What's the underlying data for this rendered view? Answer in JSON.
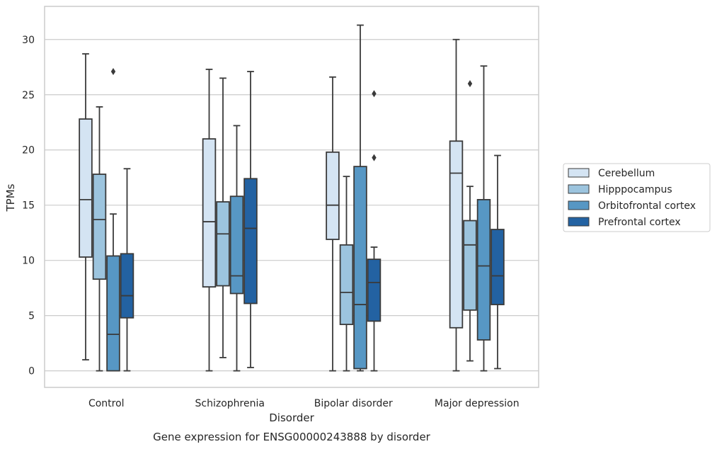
{
  "chart_data": {
    "type": "box",
    "title": "",
    "caption": "Gene expression for ENSG00000243888 by disorder",
    "xlabel": "Disorder",
    "ylabel": "TPMs",
    "ylim": [
      -1.5,
      33
    ],
    "yticks": [
      0,
      5,
      10,
      15,
      20,
      25,
      30
    ],
    "grid": "horizontal",
    "legend_position": "right",
    "categories": [
      "Control",
      "Schizophrenia",
      "Bipolar disorder",
      "Major depression"
    ],
    "series": [
      {
        "name": "Cerebellum",
        "color": "#d4e4f3",
        "boxes": [
          {
            "whislo": 1.0,
            "q1": 10.3,
            "med": 15.5,
            "q3": 22.8,
            "whishi": 28.7,
            "fliers": []
          },
          {
            "whislo": 0.0,
            "q1": 7.6,
            "med": 13.5,
            "q3": 21.0,
            "whishi": 27.3,
            "fliers": []
          },
          {
            "whislo": 0.0,
            "q1": 11.9,
            "med": 15.0,
            "q3": 19.8,
            "whishi": 26.6,
            "fliers": []
          },
          {
            "whislo": 0.0,
            "q1": 3.9,
            "med": 17.9,
            "q3": 20.8,
            "whishi": 30.0,
            "fliers": []
          }
        ]
      },
      {
        "name": "Hipppocampus",
        "color": "#9cc4de",
        "boxes": [
          {
            "whislo": 0.0,
            "q1": 8.3,
            "med": 13.7,
            "q3": 17.8,
            "whishi": 23.9,
            "fliers": []
          },
          {
            "whislo": 1.2,
            "q1": 7.7,
            "med": 12.4,
            "q3": 15.3,
            "whishi": 26.5,
            "fliers": []
          },
          {
            "whislo": 0.0,
            "q1": 4.2,
            "med": 7.1,
            "q3": 11.4,
            "whishi": 17.6,
            "fliers": []
          },
          {
            "whislo": 0.9,
            "q1": 5.5,
            "med": 11.4,
            "q3": 13.6,
            "whishi": 16.7,
            "fliers": [
              26.0
            ]
          }
        ]
      },
      {
        "name": "Orbitofrontal cortex",
        "color": "#5797c4",
        "boxes": [
          {
            "whislo": 0.0,
            "q1": 0.0,
            "med": 3.3,
            "q3": 10.4,
            "whishi": 14.2,
            "fliers": [
              27.1
            ]
          },
          {
            "whislo": 0.0,
            "q1": 7.0,
            "med": 8.6,
            "q3": 15.8,
            "whishi": 22.2,
            "fliers": []
          },
          {
            "whislo": 0.0,
            "q1": 0.2,
            "med": 6.0,
            "q3": 18.5,
            "whishi": 31.3,
            "fliers": []
          },
          {
            "whislo": 0.0,
            "q1": 2.8,
            "med": 9.5,
            "q3": 15.5,
            "whishi": 27.6,
            "fliers": []
          }
        ]
      },
      {
        "name": "Prefrontal cortex",
        "color": "#2362a2",
        "boxes": [
          {
            "whislo": 0.0,
            "q1": 4.8,
            "med": 6.8,
            "q3": 10.6,
            "whishi": 18.3,
            "fliers": []
          },
          {
            "whislo": 0.3,
            "q1": 6.1,
            "med": 12.9,
            "q3": 17.4,
            "whishi": 27.1,
            "fliers": []
          },
          {
            "whislo": 0.0,
            "q1": 4.5,
            "med": 8.0,
            "q3": 10.1,
            "whishi": 11.2,
            "fliers": [
              19.3,
              25.1
            ]
          },
          {
            "whislo": 0.2,
            "q1": 6.0,
            "med": 8.6,
            "q3": 12.8,
            "whishi": 19.5,
            "fliers": []
          }
        ]
      }
    ]
  }
}
